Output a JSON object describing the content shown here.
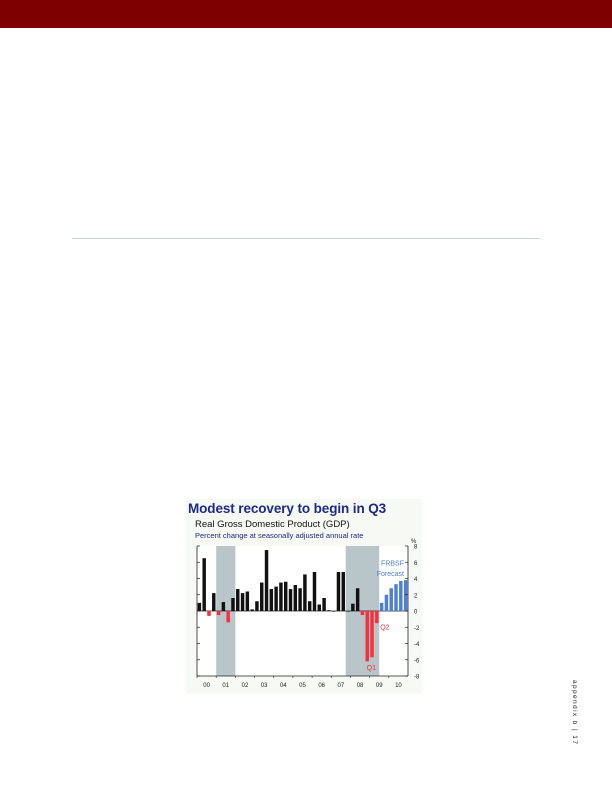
{
  "page": {
    "accent_color": "#7f0000",
    "footer": "appendix b | 17"
  },
  "chart_data": {
    "type": "bar",
    "title": "Modest recovery to begin in Q3",
    "subtitle": "Real Gross Domestic Product (GDP)",
    "note": "Percent change at seasonally adjusted annual rate",
    "ylabel": "%",
    "ylim": [
      -8,
      8
    ],
    "yticks": [
      8,
      6,
      4,
      2,
      0,
      -2,
      -4,
      -6,
      -8
    ],
    "x_tick_labels": [
      "00",
      "01",
      "02",
      "03",
      "04",
      "05",
      "06",
      "07",
      "08",
      "09",
      "10"
    ],
    "forecast_label": "FRBSF Forecast",
    "annotations": [
      "Q2",
      "Q1"
    ],
    "recession_shading": [
      [
        "01 Q1",
        "01 Q4"
      ],
      [
        "07 Q4",
        "09 Q2"
      ]
    ],
    "colors": {
      "history": "#111111",
      "negative_recent": "#ff2b3a",
      "forecast": "#4d7fd6",
      "recession": "#b8c6c9"
    },
    "quarters": [
      "00 Q1",
      "00 Q2",
      "00 Q3",
      "00 Q4",
      "01 Q1",
      "01 Q2",
      "01 Q3",
      "01 Q4",
      "02 Q1",
      "02 Q2",
      "02 Q3",
      "02 Q4",
      "03 Q1",
      "03 Q2",
      "03 Q3",
      "03 Q4",
      "04 Q1",
      "04 Q2",
      "04 Q3",
      "04 Q4",
      "05 Q1",
      "05 Q2",
      "05 Q3",
      "05 Q4",
      "06 Q1",
      "06 Q2",
      "06 Q3",
      "06 Q4",
      "07 Q1",
      "07 Q2",
      "07 Q3",
      "07 Q4",
      "08 Q1",
      "08 Q2",
      "08 Q3",
      "08 Q4",
      "09 Q1",
      "09 Q2",
      "09 Q3",
      "09 Q4",
      "10 Q1",
      "10 Q2",
      "10 Q3",
      "10 Q4"
    ],
    "values": [
      1.0,
      6.5,
      -0.6,
      2.2,
      -0.5,
      1.1,
      -1.4,
      1.6,
      2.7,
      2.2,
      2.4,
      0.2,
      1.2,
      3.5,
      7.5,
      2.7,
      3.0,
      3.5,
      3.6,
      2.7,
      3.2,
      2.8,
      4.5,
      1.2,
      4.8,
      0.8,
      1.6,
      0.1,
      0.0,
      4.8,
      4.8,
      0.0,
      0.9,
      2.8,
      -0.5,
      -6.2,
      -5.7,
      -1.5,
      1.0,
      2.0,
      2.8,
      3.3,
      3.7,
      3.8
    ],
    "series_type": [
      "history",
      "history",
      "history",
      "history",
      "history",
      "history",
      "history",
      "history",
      "history",
      "history",
      "history",
      "history",
      "history",
      "history",
      "history",
      "history",
      "history",
      "history",
      "history",
      "history",
      "history",
      "history",
      "history",
      "history",
      "history",
      "history",
      "history",
      "history",
      "history",
      "history",
      "history",
      "history",
      "history",
      "history",
      "history",
      "recent",
      "recent",
      "recent",
      "forecast",
      "forecast",
      "forecast",
      "forecast",
      "forecast",
      "forecast"
    ]
  }
}
